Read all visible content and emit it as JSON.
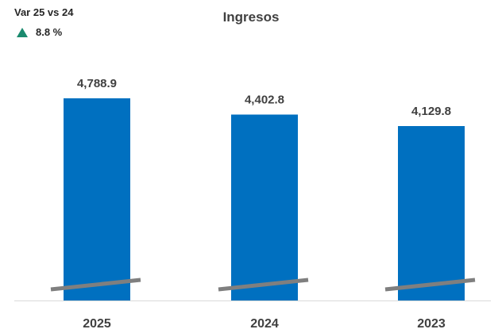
{
  "variance": {
    "label": "Var 25 vs 24",
    "value": "8.8 %",
    "up_color": "#1a8a6e"
  },
  "chart_data": {
    "type": "bar",
    "title": "Ingresos",
    "categories": [
      "2025",
      "2024",
      "2023"
    ],
    "values": [
      4788.9,
      4402.8,
      4129.8
    ],
    "value_labels": [
      "4,788.9",
      "4,402.8",
      "4,129.8"
    ],
    "bar_color": "#0070c0",
    "axis_break": true,
    "grid": false,
    "xlabel": "",
    "ylabel": ""
  }
}
